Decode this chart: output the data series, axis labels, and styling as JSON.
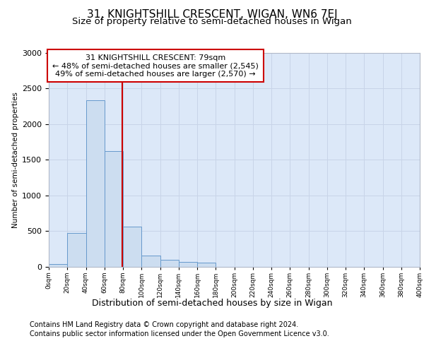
{
  "title1": "31, KNIGHTSHILL CRESCENT, WIGAN, WN6 7EJ",
  "title2": "Size of property relative to semi-detached houses in Wigan",
  "xlabel": "Distribution of semi-detached houses by size in Wigan",
  "ylabel": "Number of semi-detached properties",
  "footnote1": "Contains HM Land Registry data © Crown copyright and database right 2024.",
  "footnote2": "Contains public sector information licensed under the Open Government Licence v3.0.",
  "annotation_title": "31 KNIGHTSHILL CRESCENT: 79sqm",
  "annotation_line1": "← 48% of semi-detached houses are smaller (2,545)",
  "annotation_line2": "49% of semi-detached houses are larger (2,570) →",
  "property_size": 79,
  "bar_lefts": [
    0,
    20,
    40,
    60,
    80,
    100,
    120,
    140,
    160,
    180,
    200,
    220
  ],
  "bar_values": [
    30,
    475,
    2335,
    1620,
    560,
    150,
    90,
    60,
    50,
    0,
    0,
    0
  ],
  "bar_color": "#ccddf0",
  "bar_edge_color": "#6699cc",
  "vline_color": "#cc0000",
  "grid_color": "#c8d4e8",
  "bg_color": "#dce8f8",
  "ylim": [
    0,
    3000
  ],
  "yticks": [
    0,
    500,
    1000,
    1500,
    2000,
    2500,
    3000
  ],
  "annotation_box_color": "#ffffff",
  "annotation_box_edge": "#cc0000",
  "title1_fontsize": 11,
  "title2_fontsize": 9.5,
  "xlabel_fontsize": 9,
  "ylabel_fontsize": 7.5,
  "footnote_fontsize": 7
}
